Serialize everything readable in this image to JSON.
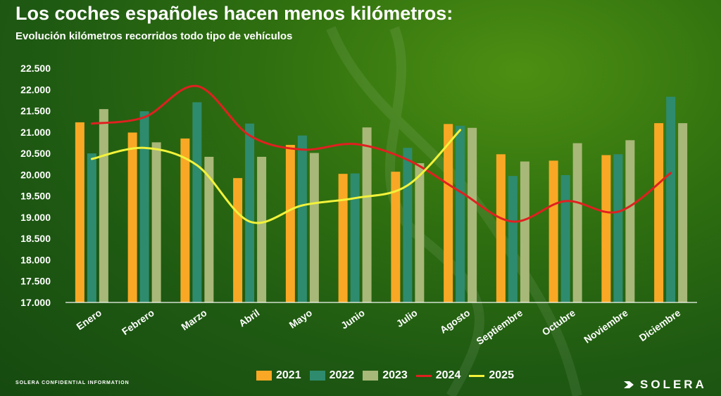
{
  "title": "Los coches españoles hacen menos kilómetros:",
  "subtitle": "Evolución kilómetros recorridos  todo tipo de vehículos",
  "footer": {
    "confidential": "SOLERA CONFIDENTIAL INFORMATION",
    "logo": "SOLERA"
  },
  "chart_data": {
    "type": "bar",
    "title": "Los coches españoles hacen menos kilómetros:",
    "subtitle": "Evolución kilómetros recorridos  todo tipo de vehículos",
    "categories": [
      "Enero",
      "Febrero",
      "Marzo",
      "Abril",
      "Mayo",
      "Junio",
      "Julio",
      "Agosto",
      "Septiembre",
      "Octubre",
      "Noviembre",
      "Diciembre"
    ],
    "ylim": [
      17000,
      22500
    ],
    "yticks": [
      "17.000",
      "17.500",
      "18.000",
      "18.500",
      "19.000",
      "19.500",
      "20.000",
      "20.500",
      "21.000",
      "21.500",
      "22.000",
      "22.500"
    ],
    "grid": false,
    "legend_position": "bottom",
    "series": [
      {
        "name": "2021",
        "kind": "bar",
        "color": "#f9a825",
        "values": [
          21230,
          20990,
          20850,
          19920,
          20700,
          20020,
          20070,
          21190,
          20480,
          20330,
          20460,
          21210
        ]
      },
      {
        "name": "2022",
        "kind": "bar",
        "color": "#2e8b6e",
        "values": [
          20500,
          21490,
          21700,
          21200,
          20920,
          20030,
          20630,
          21150,
          19970,
          19990,
          20480,
          21830
        ]
      },
      {
        "name": "2023",
        "kind": "bar",
        "color": "#a8b878",
        "values": [
          21540,
          20760,
          20420,
          20420,
          20510,
          21110,
          20270,
          21100,
          20310,
          20740,
          20810,
          21210
        ]
      },
      {
        "name": "2024",
        "kind": "line",
        "color": "#e02020",
        "values": [
          21200,
          21350,
          22080,
          20920,
          20590,
          20720,
          20350,
          19600,
          18900,
          19380,
          19130,
          20040
        ]
      },
      {
        "name": "2025",
        "kind": "line",
        "color": "#f2f23a",
        "values": [
          20370,
          20630,
          20220,
          18900,
          19280,
          19450,
          19750,
          21050,
          null,
          null,
          null,
          null
        ]
      }
    ]
  }
}
